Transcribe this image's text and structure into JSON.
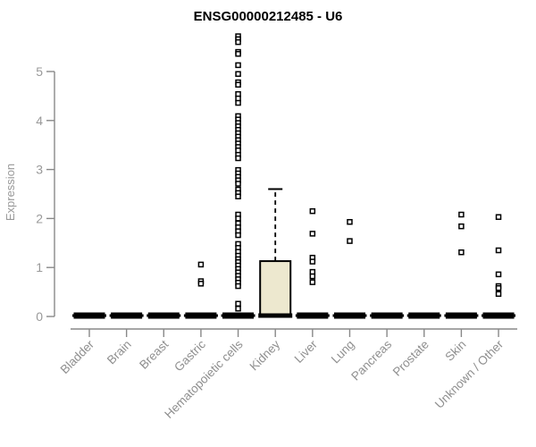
{
  "window": {
    "title": "ENSG00000212485 - U6"
  },
  "chart_data": {
    "type": "boxplot",
    "title": "ENSG00000212485 - U6",
    "xlabel": "",
    "ylabel": "Expression",
    "ylim": [
      0,
      5.8
    ],
    "yticks": [
      0,
      1,
      2,
      3,
      4,
      5
    ],
    "grid": false,
    "legend": "none",
    "marker": "open-square",
    "colors": {
      "background": "#FFFFFF",
      "axis": "#888888",
      "tick_label": "#999999",
      "title": "#000000",
      "box_fill": "#EDE8CF",
      "box_border": "#000000",
      "outlier": "#000000"
    },
    "categories": [
      "Bladder",
      "Brain",
      "Breast",
      "Gastric",
      "Hematopoietic cells",
      "Kidney",
      "Liver",
      "Lung",
      "Pancreas",
      "Prostate",
      "Skin",
      "Unknown / Other"
    ],
    "series": [
      {
        "category": "Bladder",
        "whisker_low": 0,
        "q1": 0,
        "median": 0,
        "q3": 0,
        "whisker_high": 0,
        "outliers": []
      },
      {
        "category": "Brain",
        "whisker_low": 0,
        "q1": 0,
        "median": 0,
        "q3": 0,
        "whisker_high": 0,
        "outliers": []
      },
      {
        "category": "Breast",
        "whisker_low": 0,
        "q1": 0,
        "median": 0,
        "q3": 0,
        "whisker_high": 0,
        "outliers": []
      },
      {
        "category": "Gastric",
        "whisker_low": 0,
        "q1": 0,
        "median": 0,
        "q3": 0,
        "whisker_high": 0,
        "outliers": [
          1.06,
          0.72,
          0.67
        ]
      },
      {
        "category": "Hematopoietic cells",
        "whisker_low": 0,
        "q1": 0,
        "median": 0,
        "q3": 0,
        "whisker_high": 0,
        "outliers": [
          5.72,
          5.66,
          5.6,
          5.4,
          5.36,
          5.13,
          4.95,
          4.78,
          4.73,
          4.54,
          4.45,
          4.36,
          4.09,
          4.02,
          3.95,
          3.88,
          3.81,
          3.74,
          3.67,
          3.6,
          3.53,
          3.46,
          3.39,
          3.3,
          3.23,
          2.99,
          2.92,
          2.85,
          2.78,
          2.71,
          2.59,
          2.52,
          2.45,
          2.08,
          2.0,
          1.9,
          1.82,
          1.74,
          1.66,
          1.48,
          1.4,
          1.32,
          1.24,
          1.17,
          1.11,
          1.04,
          0.97,
          0.9,
          0.83,
          0.76,
          0.69,
          0.62,
          0.26,
          0.16
        ]
      },
      {
        "category": "Kidney",
        "whisker_low": 0,
        "q1": 0,
        "median": 0,
        "q3": 1.13,
        "whisker_high": 2.6,
        "outliers": []
      },
      {
        "category": "Liver",
        "whisker_low": 0,
        "q1": 0,
        "median": 0,
        "q3": 0,
        "whisker_high": 0,
        "outliers": [
          2.15,
          1.69,
          1.2,
          1.12,
          0.91,
          0.82,
          0.7
        ]
      },
      {
        "category": "Lung",
        "whisker_low": 0,
        "q1": 0,
        "median": 0,
        "q3": 0,
        "whisker_high": 0,
        "outliers": [
          1.93,
          1.54
        ]
      },
      {
        "category": "Pancreas",
        "whisker_low": 0,
        "q1": 0,
        "median": 0,
        "q3": 0,
        "whisker_high": 0,
        "outliers": []
      },
      {
        "category": "Prostate",
        "whisker_low": 0,
        "q1": 0,
        "median": 0,
        "q3": 0,
        "whisker_high": 0,
        "outliers": []
      },
      {
        "category": "Skin",
        "whisker_low": 0,
        "q1": 0,
        "median": 0,
        "q3": 0,
        "whisker_high": 0,
        "outliers": [
          2.08,
          1.84,
          1.31
        ]
      },
      {
        "category": "Unknown / Other",
        "whisker_low": 0,
        "q1": 0,
        "median": 0,
        "q3": 0,
        "whisker_high": 0,
        "outliers": [
          2.03,
          1.35,
          0.86,
          0.62,
          0.58,
          0.46
        ]
      }
    ]
  }
}
